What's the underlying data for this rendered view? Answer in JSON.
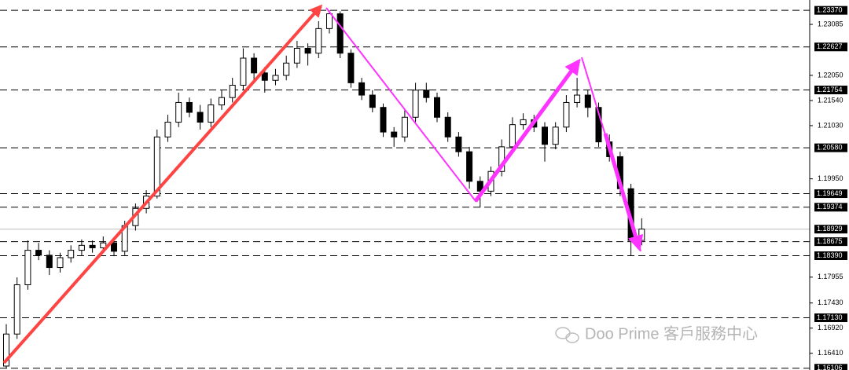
{
  "chart_data": {
    "type": "candlestick",
    "ylim": [
      1.1607,
      1.2358
    ],
    "yticks": [
      {
        "value": 1.23085,
        "label": "1.23085"
      },
      {
        "value": 1.2205,
        "label": "1.22050"
      },
      {
        "value": 1.2154,
        "label": "1.21540"
      },
      {
        "value": 1.2103,
        "label": "1.21030"
      },
      {
        "value": 1.1995,
        "label": "1.19950"
      },
      {
        "value": 1.17955,
        "label": "1.17955"
      },
      {
        "value": 1.1743,
        "label": "1.17430"
      },
      {
        "value": 1.1692,
        "label": "1.16920"
      },
      {
        "value": 1.1641,
        "label": "1.16410"
      }
    ],
    "levels": [
      {
        "value": 1.2337,
        "label": "1.23370"
      },
      {
        "value": 1.22627,
        "label": "1.22627"
      },
      {
        "value": 1.21754,
        "label": "1.21754"
      },
      {
        "value": 1.2058,
        "label": "1.20580"
      },
      {
        "value": 1.19649,
        "label": "1.19649"
      },
      {
        "value": 1.19374,
        "label": "1.19374"
      },
      {
        "value": 1.18675,
        "label": "1.18675"
      },
      {
        "value": 1.1839,
        "label": "1.18390"
      },
      {
        "value": 1.1713,
        "label": "1.17130"
      },
      {
        "value": 1.16106,
        "label": "1.16106"
      }
    ],
    "current_price": {
      "value": 1.18929,
      "label": "1.18929"
    },
    "watermark": "Doo Prime 客戶服務中心",
    "candles": [
      [
        1.1615,
        1.17,
        1.161,
        1.168
      ],
      [
        1.168,
        1.1795,
        1.167,
        1.178
      ],
      [
        1.178,
        1.187,
        1.177,
        1.185
      ],
      [
        1.185,
        1.1865,
        1.183,
        1.184
      ],
      [
        1.184,
        1.185,
        1.18,
        1.1815
      ],
      [
        1.1815,
        1.1845,
        1.1805,
        1.1835
      ],
      [
        1.1835,
        1.186,
        1.1825,
        1.185
      ],
      [
        1.185,
        1.1872,
        1.184,
        1.186
      ],
      [
        1.186,
        1.187,
        1.1845,
        1.1855
      ],
      [
        1.1855,
        1.1878,
        1.1845,
        1.1865
      ],
      [
        1.1865,
        1.1875,
        1.1838,
        1.1848
      ],
      [
        1.1848,
        1.191,
        1.184,
        1.19
      ],
      [
        1.19,
        1.1945,
        1.189,
        1.1935
      ],
      [
        1.1935,
        1.1972,
        1.1925,
        1.196
      ],
      [
        1.196,
        1.2095,
        1.1955,
        1.208
      ],
      [
        1.208,
        1.2125,
        1.207,
        1.211
      ],
      [
        1.211,
        1.217,
        1.21,
        1.215
      ],
      [
        1.215,
        1.216,
        1.212,
        1.213
      ],
      [
        1.213,
        1.2145,
        1.2095,
        1.211
      ],
      [
        1.211,
        1.2158,
        1.21,
        1.2145
      ],
      [
        1.2145,
        1.2175,
        1.2135,
        1.216
      ],
      [
        1.216,
        1.22,
        1.215,
        1.2185
      ],
      [
        1.2185,
        1.226,
        1.2175,
        1.224
      ],
      [
        1.224,
        1.225,
        1.2195,
        1.221
      ],
      [
        1.221,
        1.2222,
        1.217,
        1.2195
      ],
      [
        1.2195,
        1.2218,
        1.2185,
        1.2205
      ],
      [
        1.2205,
        1.2245,
        1.2195,
        1.223
      ],
      [
        1.223,
        1.2275,
        1.222,
        1.226
      ],
      [
        1.226,
        1.227,
        1.2225,
        1.225
      ],
      [
        1.225,
        1.2315,
        1.224,
        1.23
      ],
      [
        1.23,
        1.2337,
        1.229,
        1.233
      ],
      [
        1.233,
        1.2335,
        1.224,
        1.225
      ],
      [
        1.225,
        1.2258,
        1.218,
        1.219
      ],
      [
        1.219,
        1.22,
        1.2155,
        1.2165
      ],
      [
        1.2165,
        1.2175,
        1.213,
        1.214
      ],
      [
        1.214,
        1.2148,
        1.208,
        1.209
      ],
      [
        1.209,
        1.21,
        1.206,
        1.208
      ],
      [
        1.208,
        1.2135,
        1.207,
        1.212
      ],
      [
        1.212,
        1.219,
        1.211,
        1.2175
      ],
      [
        1.2175,
        1.219,
        1.215,
        1.216
      ],
      [
        1.216,
        1.217,
        1.211,
        1.212
      ],
      [
        1.212,
        1.213,
        1.207,
        1.208
      ],
      [
        1.208,
        1.209,
        1.204,
        1.205
      ],
      [
        1.205,
        1.206,
        1.1975,
        1.199
      ],
      [
        1.199,
        1.2,
        1.1937,
        1.197
      ],
      [
        1.197,
        1.202,
        1.196,
        1.201
      ],
      [
        1.201,
        1.2075,
        1.2,
        1.206
      ],
      [
        1.206,
        1.212,
        1.205,
        1.2105
      ],
      [
        1.2105,
        1.2128,
        1.2095,
        1.2115
      ],
      [
        1.2115,
        1.2125,
        1.209,
        1.21
      ],
      [
        1.21,
        1.211,
        1.203,
        1.2065
      ],
      [
        1.2065,
        1.211,
        1.2055,
        1.21
      ],
      [
        1.21,
        1.2165,
        1.209,
        1.215
      ],
      [
        1.215,
        1.22,
        1.214,
        1.2165
      ],
      [
        1.2165,
        1.2175,
        1.212,
        1.214
      ],
      [
        1.214,
        1.215,
        1.206,
        1.207
      ],
      [
        1.207,
        1.2085,
        1.203,
        1.204
      ],
      [
        1.204,
        1.205,
        1.196,
        1.1975
      ],
      [
        1.1975,
        1.1985,
        1.1839,
        1.187
      ],
      [
        1.187,
        1.1915,
        1.186,
        1.1893
      ]
    ]
  }
}
